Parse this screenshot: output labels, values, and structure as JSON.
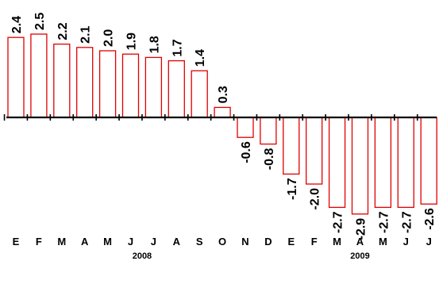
{
  "chart_data": {
    "type": "bar",
    "categories": [
      "E",
      "F",
      "M",
      "A",
      "M",
      "J",
      "J",
      "A",
      "S",
      "O",
      "N",
      "D",
      "E",
      "F",
      "M",
      "A",
      "M",
      "J",
      "J"
    ],
    "values": [
      2.4,
      2.5,
      2.2,
      2.1,
      2.0,
      1.9,
      1.8,
      1.7,
      1.4,
      0.3,
      -0.6,
      -0.8,
      -1.7,
      -2.0,
      -2.7,
      -2.9,
      -2.7,
      -2.7,
      -2.6
    ],
    "value_labels": [
      "2.4",
      "2.5",
      "2.2",
      "2.1",
      "2.0",
      "1.9",
      "1.8",
      "1.7",
      "1.4",
      "0.3",
      "-0.6",
      "-0.8",
      "-1.7",
      "-2.0",
      "-2.7",
      "-2.9",
      "-2.7",
      "-2.7",
      "-2.6"
    ],
    "year_groups": [
      {
        "label": "2008",
        "first": 0,
        "last": 11
      },
      {
        "label": "2009",
        "first": 12,
        "last": 18
      }
    ],
    "bar_color": "#e00000",
    "axis_color": "#000000",
    "grid": false,
    "legend": "none"
  }
}
